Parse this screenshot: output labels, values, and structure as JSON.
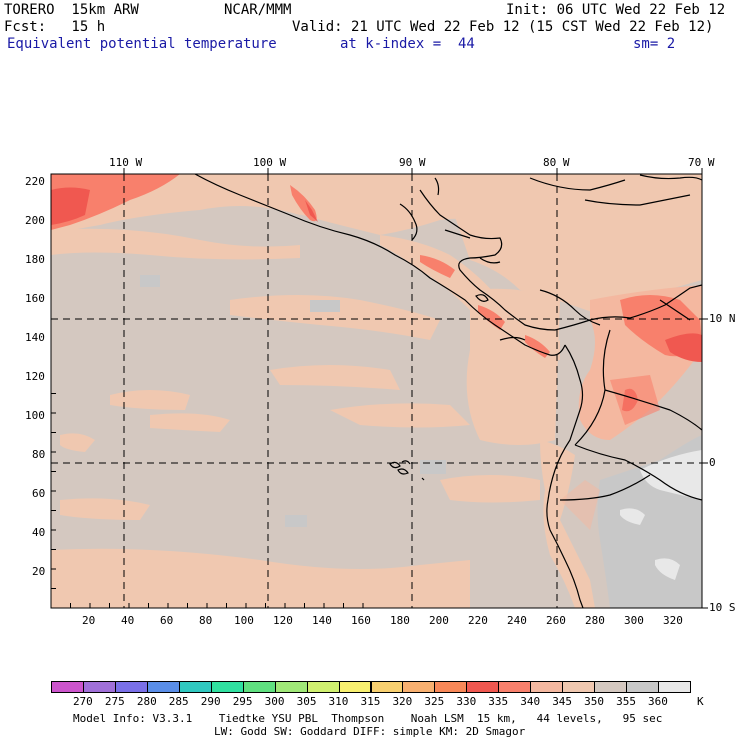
{
  "header": {
    "model": "TORERO  15km ARW",
    "center": "NCAR/MMM",
    "init": "Init: 06 UTC Wed 22 Feb 12",
    "fcst": "Fcst:   15 h",
    "valid": "Valid: 21 UTC Wed 22 Feb 12 (15 CST Wed 22 Feb 12)",
    "field": "Equivalent potential temperature",
    "level": "at k-index =  44",
    "smooth": "sm= 2"
  },
  "map": {
    "lon_labels": [
      "110 W",
      "100 W",
      "90 W",
      "80 W",
      "70 W"
    ],
    "lat_labels": [
      "10 N",
      "0",
      "10 S"
    ],
    "y_ticks": [
      "20",
      "40",
      "60",
      "80",
      "100",
      "120",
      "140",
      "160",
      "180",
      "200",
      "220"
    ],
    "x_ticks": [
      "20",
      "40",
      "60",
      "80",
      "100",
      "120",
      "140",
      "160",
      "180",
      "200",
      "220",
      "240",
      "260",
      "280",
      "300",
      "320"
    ]
  },
  "colorbar": {
    "labels": [
      "270",
      "275",
      "280",
      "285",
      "290",
      "295",
      "300",
      "305",
      "310",
      "315",
      "320",
      "325",
      "330",
      "335",
      "340",
      "345",
      "350",
      "355",
      "360"
    ],
    "unit": "K",
    "colors": [
      "#cc55cc",
      "#a070d8",
      "#7a70e8",
      "#5a8ee8",
      "#30c8c0",
      "#30e0a0",
      "#60e080",
      "#a0e878",
      "#d0f070",
      "#f8f070",
      "#f8d070",
      "#f8b070",
      "#f88858",
      "#f05850",
      "#f8806c",
      "#f4b8a0",
      "#f0c8b0",
      "#d4c8c0",
      "#c8c8c8",
      "#e8e8e8"
    ]
  },
  "footer": {
    "line1": "Model Info: V3.3.1    Tiedtke YSU PBL  Thompson    Noah LSM  15 km,   44 levels,   95 sec",
    "line2": "LW: Godd SW: Goddard DIFF: simple KM: 2D Smagor"
  }
}
